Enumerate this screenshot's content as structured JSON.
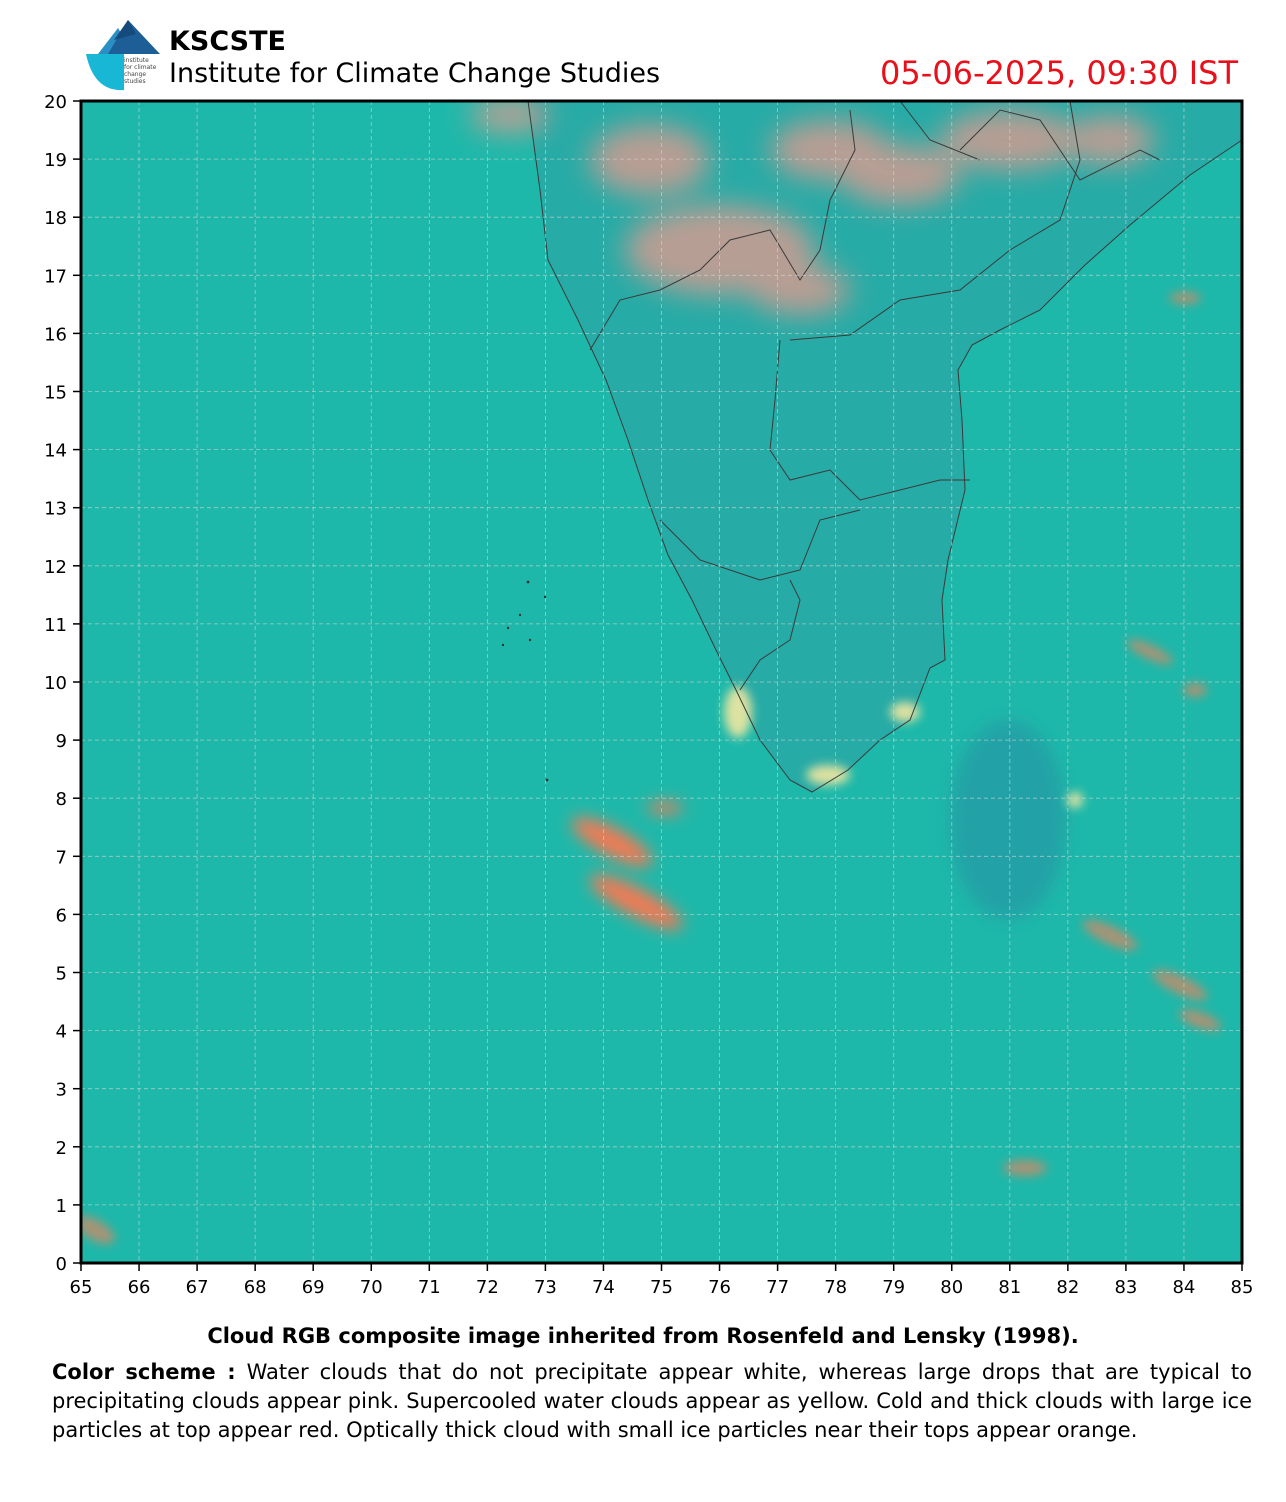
{
  "header": {
    "org_name": "KSCSTE",
    "org_subtitle": "Institute for Climate Change Studies",
    "logo_text": [
      "institute",
      "for climate",
      "change",
      "studies"
    ],
    "timestamp": "05-06-2025, 09:30 IST"
  },
  "map": {
    "x_ticks": [
      65,
      66,
      67,
      68,
      69,
      70,
      71,
      72,
      73,
      74,
      75,
      76,
      77,
      78,
      79,
      80,
      81,
      82,
      83,
      84,
      85
    ],
    "y_ticks": [
      0,
      1,
      2,
      3,
      4,
      5,
      6,
      7,
      8,
      9,
      10,
      11,
      12,
      13,
      14,
      15,
      16,
      17,
      18,
      19,
      20
    ],
    "lon_range": [
      65,
      85
    ],
    "lat_range": [
      0,
      20
    ],
    "grid": true,
    "colors": {
      "ocean": "#1eb8aa",
      "land": "#2aa9a5",
      "precipitating_cloud": "#e89a8e",
      "ice_cloud": "#f07a55",
      "supercooled": "#f2e7a0",
      "border": "#3a3a3a"
    }
  },
  "caption": "Cloud RGB composite image inherited from Rosenfeld and Lensky (1998).",
  "color_scheme": {
    "label": "Color scheme :",
    "text": " Water clouds that do not precipitate appear white, whereas large drops that are typical to precipitating clouds appear pink. Supercooled water clouds appear as yellow. Cold and thick clouds with large ice particles at top appear red. Optically thick cloud with small ice particles near their tops appear orange."
  }
}
